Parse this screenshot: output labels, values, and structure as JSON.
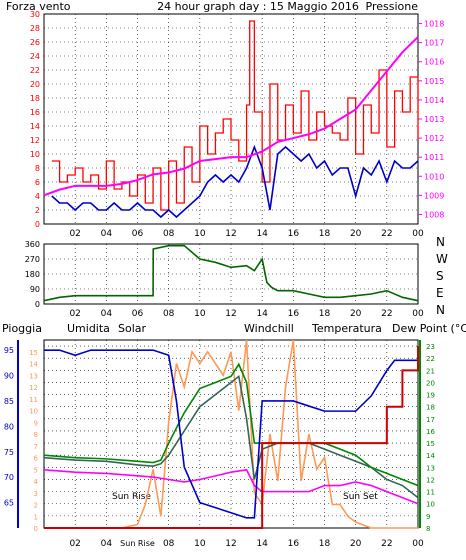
{
  "colors": {
    "wind": "#ff0000",
    "wind_avg": "#0000cc",
    "pressure": "#ff00ff",
    "direction": "#006600",
    "rain": "#cc0000",
    "humidity": "#0000cc",
    "solar": "#ff9955",
    "windchill": "#336655",
    "temperature": "#008800",
    "dewpoint": "#ff00ff",
    "annotation": "#cc6600",
    "grid": "#000000",
    "frame": "#000000"
  },
  "chart_data": [
    {
      "type": "line",
      "title": "24 hour graph day : 15 Maggio 2016",
      "left_title": "Forza vento",
      "right_title": "Pressione",
      "x_ticks": [
        "02",
        "04",
        "06",
        "08",
        "10",
        "12",
        "14",
        "16",
        "18",
        "20",
        "22",
        "00"
      ],
      "ylim_left": [
        0,
        30
      ],
      "left_ticks": [
        "0",
        "2",
        "4",
        "6",
        "8",
        "10",
        "12",
        "14",
        "16",
        "18",
        "20",
        "22",
        "24",
        "26",
        "28",
        "30"
      ],
      "ylim_right": [
        1007.5,
        1018.5
      ],
      "right_ticks": [
        "1008",
        "1009",
        "1010",
        "1011",
        "1012",
        "1013",
        "1014",
        "1015",
        "1016",
        "1017",
        "1018"
      ],
      "grid": true,
      "series": [
        {
          "name": "Forza vento",
          "axis": "left",
          "x": [
            0.5,
            1,
            1.5,
            2,
            2.5,
            3,
            3.5,
            4,
            4.5,
            5,
            5.5,
            6,
            6.5,
            7,
            7.5,
            8,
            8.5,
            9,
            9.5,
            10,
            10.5,
            11,
            11.5,
            12,
            12.5,
            13,
            13.2,
            13.5,
            14,
            14.5,
            15,
            15.5,
            16,
            16.5,
            17,
            17.5,
            18,
            18.5,
            19,
            19.5,
            20,
            20.5,
            21,
            21.5,
            22,
            22.5,
            23,
            23.5,
            24
          ],
          "values": [
            9,
            6,
            7,
            8,
            6,
            7,
            5,
            9,
            5,
            6,
            4,
            7,
            3,
            8,
            2,
            9,
            3,
            11,
            6,
            14,
            10,
            13,
            15,
            12,
            9,
            17,
            29,
            16,
            6,
            20,
            12,
            17,
            13,
            19,
            12,
            16,
            14,
            13,
            12,
            18,
            10,
            17,
            13,
            22,
            11,
            19,
            16,
            21,
            12
          ]
        },
        {
          "name": "Vento medio",
          "axis": "left",
          "x": [
            0.5,
            1,
            1.5,
            2,
            2.5,
            3,
            3.5,
            4,
            4.5,
            5,
            5.5,
            6,
            6.5,
            7,
            7.5,
            8,
            8.5,
            9,
            9.5,
            10,
            10.5,
            11,
            11.5,
            12,
            12.5,
            13,
            13.5,
            14,
            14.5,
            15,
            15.5,
            16,
            16.5,
            17,
            17.5,
            18,
            18.5,
            19,
            19.5,
            20,
            20.5,
            21,
            21.5,
            22,
            22.5,
            23,
            23.5,
            24
          ],
          "values": [
            4,
            3,
            3,
            2,
            3,
            3,
            2,
            2,
            3,
            2,
            2,
            3,
            2,
            2,
            1,
            2,
            1,
            2,
            3,
            4,
            6,
            7,
            6,
            7,
            6,
            8,
            11,
            8,
            2,
            10,
            11,
            10,
            9,
            10,
            8,
            9,
            7,
            8,
            8,
            4,
            8,
            7,
            9,
            6,
            9,
            8,
            8,
            9
          ]
        },
        {
          "name": "Pressione",
          "axis": "right",
          "x": [
            0,
            1,
            2,
            3,
            4,
            5,
            6,
            7,
            8,
            9,
            10,
            11,
            12,
            13,
            14,
            15,
            16,
            17,
            18,
            19,
            20,
            21,
            22,
            23,
            24
          ],
          "values": [
            1009.0,
            1009.3,
            1009.5,
            1009.5,
            1009.5,
            1009.6,
            1009.8,
            1010.1,
            1010.2,
            1010.4,
            1010.8,
            1010.9,
            1011.0,
            1011.0,
            1011.3,
            1011.8,
            1012.0,
            1012.2,
            1012.5,
            1013.0,
            1013.5,
            1014.5,
            1015.5,
            1016.5,
            1017.3
          ]
        }
      ]
    },
    {
      "type": "line",
      "x_ticks": [
        "02",
        "04",
        "06",
        "08",
        "10",
        "12",
        "14",
        "16",
        "18",
        "20",
        "22",
        "00"
      ],
      "ylim": [
        0,
        360
      ],
      "y_ticks": [
        "0",
        "90",
        "180",
        "270",
        "360"
      ],
      "right_labels": [
        "N",
        "W",
        "S",
        "E",
        "N"
      ],
      "grid": true,
      "series": [
        {
          "name": "Direzione vento",
          "x": [
            0,
            1,
            2,
            3,
            4,
            5,
            6,
            7,
            7.01,
            8,
            9,
            10,
            11,
            12,
            13,
            13.5,
            14,
            14.3,
            14.6,
            15,
            16,
            17,
            18,
            19,
            20,
            21,
            22,
            23,
            24
          ],
          "values": [
            20,
            40,
            50,
            50,
            50,
            50,
            50,
            50,
            330,
            350,
            350,
            270,
            250,
            220,
            230,
            200,
            270,
            130,
            100,
            80,
            80,
            60,
            40,
            40,
            50,
            60,
            80,
            40,
            20
          ]
        }
      ]
    },
    {
      "type": "line",
      "legend": [
        "Pioggia",
        "Umidita",
        "Solar",
        "Windchill",
        "Temperatura",
        "Dew Point (°C)"
      ],
      "x_ticks": [
        "02",
        "04",
        "Sun Rise",
        "08",
        "10",
        "12",
        "14",
        "16",
        "18",
        "20",
        "22",
        "00"
      ],
      "ylim_left": [
        60,
        97
      ],
      "left_ticks": [
        "65",
        "70",
        "75",
        "80",
        "85",
        "90",
        "95"
      ],
      "ylim_mid": [
        0,
        16
      ],
      "mid_ticks": [
        "0",
        "1",
        "2",
        "3",
        "4",
        "5",
        "6",
        "7",
        "8",
        "9",
        "10",
        "11",
        "12",
        "13",
        "14",
        "15"
      ],
      "ylim_right": [
        8,
        23.5
      ],
      "right_ticks": [
        "8",
        "9",
        "10",
        "11",
        "12",
        "13",
        "14",
        "15",
        "16",
        "17",
        "18",
        "19",
        "20",
        "21",
        "22",
        "23"
      ],
      "annotations": [
        "Sun Rise",
        "Sun Set"
      ],
      "grid": true,
      "series": [
        {
          "name": "Umidita",
          "axis": "left",
          "x": [
            0,
            1,
            2,
            3,
            4,
            5,
            6,
            7,
            8,
            8.5,
            9,
            10,
            11,
            12,
            13,
            13.5,
            14,
            15,
            16,
            17,
            18,
            19,
            20,
            21,
            22,
            22.5,
            23,
            24
          ],
          "values": [
            95,
            95,
            94,
            95,
            95,
            95,
            95,
            95,
            94,
            85,
            72,
            65,
            64,
            63,
            62,
            62,
            85,
            85,
            85,
            84,
            83,
            83,
            83,
            86,
            91,
            93,
            93,
            93
          ]
        },
        {
          "name": "Solar",
          "axis": "mid",
          "x": [
            0,
            5,
            6,
            6.5,
            7,
            7.5,
            8,
            8.5,
            9,
            9.5,
            10,
            10.5,
            11,
            11.5,
            12,
            12.5,
            13,
            13.5,
            14,
            14.5,
            15,
            15.5,
            16,
            16.5,
            17,
            17.5,
            18,
            18.5,
            19,
            19.5,
            20,
            21,
            24
          ],
          "values": [
            0,
            0,
            0.3,
            2,
            5,
            1,
            9,
            14,
            12,
            15,
            14,
            15,
            14,
            13,
            15,
            10,
            16,
            3,
            2,
            8,
            4,
            12,
            16,
            4,
            8,
            5,
            6,
            2,
            2,
            1,
            0.5,
            0,
            0
          ]
        },
        {
          "name": "Windchill",
          "axis": "right",
          "x": [
            0,
            2,
            4,
            6,
            7,
            7.5,
            8,
            9,
            10,
            11,
            12,
            12.5,
            13,
            13.5,
            14,
            15,
            16,
            17,
            18,
            19,
            20,
            21,
            22,
            23,
            24
          ],
          "values": [
            13.8,
            13.6,
            13.5,
            13.2,
            13.1,
            13.3,
            14,
            16,
            18,
            19,
            20,
            20.5,
            17,
            12,
            14.5,
            15,
            15,
            15,
            14.5,
            14,
            13.5,
            13,
            12,
            11.5,
            10.5
          ]
        },
        {
          "name": "Temperatura",
          "axis": "right",
          "x": [
            0,
            2,
            4,
            6,
            7,
            7.5,
            8,
            9,
            10,
            11,
            12,
            12.5,
            13,
            13.5,
            14,
            15,
            16,
            17,
            18,
            19,
            20,
            21,
            22,
            23,
            24
          ],
          "values": [
            14,
            13.8,
            13.7,
            13.5,
            13.4,
            13.6,
            15,
            17.5,
            19.5,
            20,
            20.5,
            21.5,
            20,
            15,
            15,
            15,
            15,
            15,
            15,
            14.5,
            14,
            13,
            12.5,
            12,
            11.5
          ]
        },
        {
          "name": "Dew Point (°C)",
          "axis": "right",
          "x": [
            0,
            2,
            4,
            6,
            7,
            8,
            9,
            10,
            11,
            12,
            13,
            13.5,
            14,
            15,
            16,
            17,
            18,
            19,
            20,
            21,
            22,
            23,
            24
          ],
          "values": [
            12.8,
            12.6,
            12.5,
            12.3,
            12.2,
            12.0,
            11.8,
            12.0,
            12.3,
            12.6,
            12.8,
            11.5,
            11.0,
            11.0,
            11.0,
            11.0,
            11.5,
            11.5,
            11.8,
            11.5,
            11.0,
            10.5,
            10.0
          ]
        },
        {
          "name": "Pioggia",
          "axis": "right",
          "x": [
            0,
            13,
            14,
            15,
            16,
            17,
            18,
            19,
            20,
            21,
            22,
            23,
            24
          ],
          "values": [
            8,
            8,
            15,
            15,
            15,
            15,
            15,
            15,
            15,
            15,
            18,
            21,
            23
          ]
        }
      ]
    }
  ]
}
